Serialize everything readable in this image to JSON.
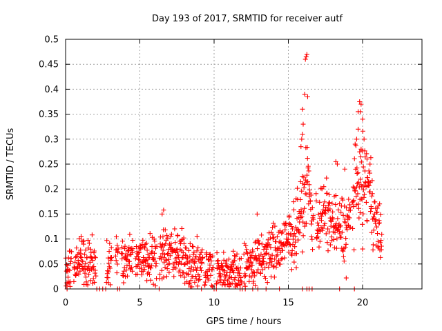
{
  "chart_data": {
    "type": "scatter",
    "title": "Day 193 of 2017, SRMTID for receiver autf",
    "xlabel": "GPS time / hours",
    "ylabel": "SRMTID / TECUs",
    "xlim": [
      0,
      24
    ],
    "ylim": [
      0,
      0.5
    ],
    "x_ticks": [
      0,
      5,
      10,
      15,
      20
    ],
    "x_tick_labels": [
      "0",
      "5",
      "10",
      "15",
      "20"
    ],
    "y_ticks": [
      0,
      0.05,
      0.1,
      0.15,
      0.2,
      0.25,
      0.3,
      0.35,
      0.4,
      0.45,
      0.5
    ],
    "y_tick_labels": [
      "0",
      "0.05",
      "0.1",
      "0.15",
      "0.2",
      "0.25",
      "0.3",
      "0.35",
      "0.4",
      "0.45",
      "0.5"
    ],
    "grid": true,
    "marker": "+",
    "color": "#ff0000",
    "series": [
      {
        "name": "SRMTID",
        "profile": [
          {
            "t": 0.0,
            "y": 0.035
          },
          {
            "t": 0.5,
            "y": 0.055
          },
          {
            "t": 1.0,
            "y": 0.06
          },
          {
            "t": 1.5,
            "y": 0.05
          },
          {
            "t": 2.0,
            "y": 0.045
          },
          {
            "t": 3.0,
            "y": 0.055
          },
          {
            "t": 3.5,
            "y": 0.06
          },
          {
            "t": 4.0,
            "y": 0.055
          },
          {
            "t": 5.0,
            "y": 0.065
          },
          {
            "t": 6.0,
            "y": 0.07
          },
          {
            "t": 7.0,
            "y": 0.07
          },
          {
            "t": 8.0,
            "y": 0.06
          },
          {
            "t": 9.0,
            "y": 0.045
          },
          {
            "t": 9.5,
            "y": 0.04
          },
          {
            "t": 10.0,
            "y": 0.035
          },
          {
            "t": 11.0,
            "y": 0.035
          },
          {
            "t": 12.0,
            "y": 0.045
          },
          {
            "t": 13.0,
            "y": 0.055
          },
          {
            "t": 14.0,
            "y": 0.075
          },
          {
            "t": 15.0,
            "y": 0.095
          },
          {
            "t": 15.5,
            "y": 0.12
          },
          {
            "t": 16.0,
            "y": 0.17
          },
          {
            "t": 16.3,
            "y": 0.22
          },
          {
            "t": 16.6,
            "y": 0.14
          },
          {
            "t": 17.0,
            "y": 0.14
          },
          {
            "t": 17.5,
            "y": 0.15
          },
          {
            "t": 18.0,
            "y": 0.13
          },
          {
            "t": 18.5,
            "y": 0.12
          },
          {
            "t": 19.0,
            "y": 0.13
          },
          {
            "t": 19.5,
            "y": 0.19
          },
          {
            "t": 20.0,
            "y": 0.22
          },
          {
            "t": 20.4,
            "y": 0.2
          },
          {
            "t": 20.8,
            "y": 0.15
          },
          {
            "t": 21.3,
            "y": 0.09
          }
        ],
        "spread": 0.026,
        "extra_points": [
          {
            "x": 16.15,
            "y": 0.46
          },
          {
            "x": 16.2,
            "y": 0.465
          },
          {
            "x": 16.25,
            "y": 0.47
          },
          {
            "x": 16.1,
            "y": 0.39
          },
          {
            "x": 16.3,
            "y": 0.385
          },
          {
            "x": 15.95,
            "y": 0.36
          },
          {
            "x": 16.0,
            "y": 0.33
          },
          {
            "x": 15.9,
            "y": 0.3
          },
          {
            "x": 15.85,
            "y": 0.285
          },
          {
            "x": 15.95,
            "y": 0.31
          },
          {
            "x": 19.8,
            "y": 0.375
          },
          {
            "x": 19.9,
            "y": 0.37
          },
          {
            "x": 19.85,
            "y": 0.355
          },
          {
            "x": 19.7,
            "y": 0.355
          },
          {
            "x": 20.0,
            "y": 0.34
          },
          {
            "x": 19.6,
            "y": 0.3
          },
          {
            "x": 19.5,
            "y": 0.29
          },
          {
            "x": 19.7,
            "y": 0.32
          },
          {
            "x": 20.1,
            "y": 0.3
          },
          {
            "x": 19.9,
            "y": 0.28
          },
          {
            "x": 20.3,
            "y": 0.26
          },
          {
            "x": 20.5,
            "y": 0.25
          },
          {
            "x": 18.2,
            "y": 0.255
          },
          {
            "x": 18.3,
            "y": 0.25
          },
          {
            "x": 18.8,
            "y": 0.24
          },
          {
            "x": 12.9,
            "y": 0.15
          },
          {
            "x": 6.6,
            "y": 0.158
          },
          {
            "x": 6.5,
            "y": 0.15
          },
          {
            "x": 18.9,
            "y": 0.022
          },
          {
            "x": 20.0,
            "y": 0.08
          },
          {
            "x": 0.1,
            "y": 0.01
          },
          {
            "x": 0.3,
            "y": 0.005
          }
        ],
        "gaps": [
          [
            0.4,
            0.55
          ],
          [
            2.05,
            2.75
          ],
          [
            3.1,
            3.35
          ],
          [
            3.55,
            3.75
          ],
          [
            4.55,
            4.7
          ],
          [
            6.15,
            6.3
          ],
          [
            9.25,
            9.35
          ],
          [
            9.95,
            10.15
          ],
          [
            11.85,
            12.0
          ],
          [
            16.7,
            16.85
          ],
          [
            19.2,
            19.3
          ]
        ],
        "zero_points": [
          0.1,
          2.1,
          2.3,
          2.5,
          2.7,
          3.5,
          3.65,
          6.3,
          9.15,
          10.0,
          10.15,
          11.75,
          11.9,
          12.1,
          12.6,
          12.95,
          13.5,
          14.4,
          15.95,
          16.25,
          16.4,
          16.6,
          18.45,
          19.45
        ]
      }
    ]
  }
}
